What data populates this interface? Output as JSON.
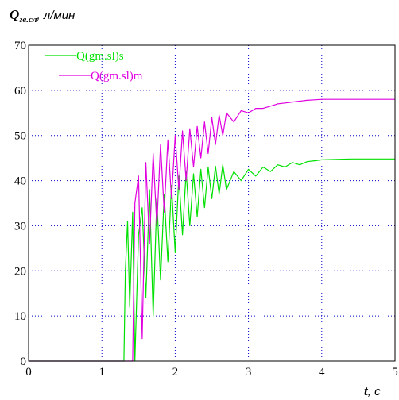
{
  "chart_data": {
    "type": "line",
    "ylabel": {
      "symbol": "Q",
      "subscript": "гв.сл",
      "unit": ", л/мин"
    },
    "xlabel": {
      "symbol": "t",
      "unit": ", с"
    },
    "xlim": [
      0,
      5
    ],
    "ylim": [
      0,
      70
    ],
    "x_ticks": [
      "0",
      "1",
      "2",
      "3",
      "4",
      "5"
    ],
    "y_ticks": [
      "0",
      "10",
      "20",
      "30",
      "40",
      "50",
      "60",
      "70"
    ],
    "x_tick_values": [
      0,
      1,
      2,
      3,
      4,
      5
    ],
    "y_tick_values": [
      0,
      10,
      20,
      30,
      40,
      50,
      60,
      70
    ],
    "grid": true,
    "legend_position": "top-left",
    "series": [
      {
        "name": "Q(gm.sl)s",
        "color": "#00e000",
        "x": [
          0,
          1.3,
          1.32,
          1.35,
          1.38,
          1.42,
          1.45,
          1.5,
          1.55,
          1.6,
          1.65,
          1.7,
          1.75,
          1.8,
          1.85,
          1.9,
          1.95,
          2.0,
          2.05,
          2.1,
          2.15,
          2.2,
          2.25,
          2.3,
          2.35,
          2.4,
          2.45,
          2.5,
          2.55,
          2.6,
          2.65,
          2.7,
          2.8,
          2.9,
          3.0,
          3.1,
          3.2,
          3.3,
          3.4,
          3.5,
          3.6,
          3.7,
          3.8,
          3.9,
          4.0,
          4.2,
          4.4,
          4.6,
          4.8,
          5.0
        ],
        "y": [
          0,
          0,
          20,
          31,
          12,
          33,
          0,
          28,
          34,
          14,
          38,
          10,
          36,
          18,
          37,
          22,
          39,
          24,
          41,
          28,
          42,
          30,
          41.5,
          32,
          42.5,
          34,
          43,
          36,
          43.2,
          37,
          43.5,
          38,
          42,
          40,
          42.5,
          41,
          43,
          42,
          43.5,
          43,
          44,
          43.5,
          44.2,
          44.4,
          44.6,
          44.7,
          44.8,
          44.8,
          44.8,
          44.8
        ]
      },
      {
        "name": "Q(gm.sl)m",
        "color": "#e000e0",
        "x": [
          0,
          1.42,
          1.45,
          1.5,
          1.55,
          1.6,
          1.65,
          1.7,
          1.75,
          1.8,
          1.85,
          1.9,
          1.95,
          2.0,
          2.05,
          2.1,
          2.15,
          2.2,
          2.25,
          2.3,
          2.35,
          2.4,
          2.45,
          2.5,
          2.55,
          2.6,
          2.65,
          2.7,
          2.8,
          2.9,
          3.0,
          3.1,
          3.2,
          3.3,
          3.4,
          3.5,
          3.6,
          3.7,
          3.8,
          3.9,
          4.0,
          4.2,
          4.4,
          4.6,
          4.8,
          5.0
        ],
        "y": [
          0,
          0,
          35,
          41,
          5,
          44,
          26,
          46,
          30,
          48,
          33,
          49,
          36,
          50,
          38,
          51,
          40,
          51.5,
          43,
          52,
          45,
          53,
          46,
          54,
          48,
          54.5,
          50,
          55,
          53,
          55.5,
          55,
          56,
          56,
          56.5,
          57,
          57.2,
          57.4,
          57.6,
          57.8,
          57.9,
          58,
          58,
          58,
          58,
          58,
          58
        ]
      }
    ]
  }
}
